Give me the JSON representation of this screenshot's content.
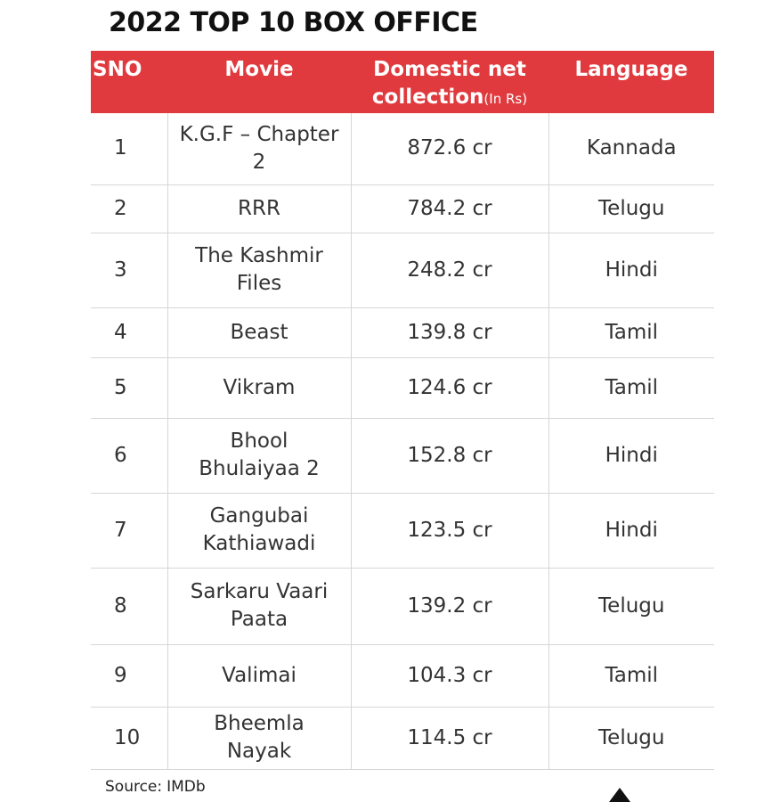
{
  "title": "2022 TOP 10 BOX OFFICE",
  "headers": {
    "sno": "SNO",
    "movie": "Movie",
    "domestic": "Domestic net collection",
    "domestic_unit": "(In Rs)",
    "language": "Language"
  },
  "source": {
    "label": "Source:",
    "value": "IMDb"
  },
  "colors": {
    "header_bg": "#e03a3e",
    "header_text": "#ffffff"
  },
  "chart_data": {
    "type": "table",
    "title": "2022 TOP 10 BOX OFFICE",
    "columns": [
      "SNO",
      "Movie",
      "Domestic net collection (In Rs)",
      "Language"
    ],
    "rows": [
      {
        "sno": "1",
        "movie": "K.G.F – Chapter 2",
        "collection": "872.6 cr",
        "language": "Kannada"
      },
      {
        "sno": "2",
        "movie": "RRR",
        "collection": "784.2 cr",
        "language": "Telugu"
      },
      {
        "sno": "3",
        "movie": "The Kashmir Files",
        "collection": "248.2 cr",
        "language": "Hindi"
      },
      {
        "sno": "4",
        "movie": "Beast",
        "collection": "139.8 cr",
        "language": "Tamil"
      },
      {
        "sno": "5",
        "movie": "Vikram",
        "collection": "124.6 cr",
        "language": "Tamil"
      },
      {
        "sno": "6",
        "movie": "Bhool Bhulaiyaa 2",
        "collection": "152.8 cr",
        "language": "Hindi"
      },
      {
        "sno": "7",
        "movie": "Gangubai Kathiawadi",
        "collection": "123.5 cr",
        "language": "Hindi"
      },
      {
        "sno": "8",
        "movie": "Sarkaru Vaari Paata",
        "collection": "139.2 cr",
        "language": "Telugu"
      },
      {
        "sno": "9",
        "movie": "Valimai",
        "collection": "104.3 cr",
        "language": "Tamil"
      },
      {
        "sno": "10",
        "movie": "Bheemla Nayak",
        "collection": "114.5 cr",
        "language": "Telugu"
      }
    ]
  }
}
